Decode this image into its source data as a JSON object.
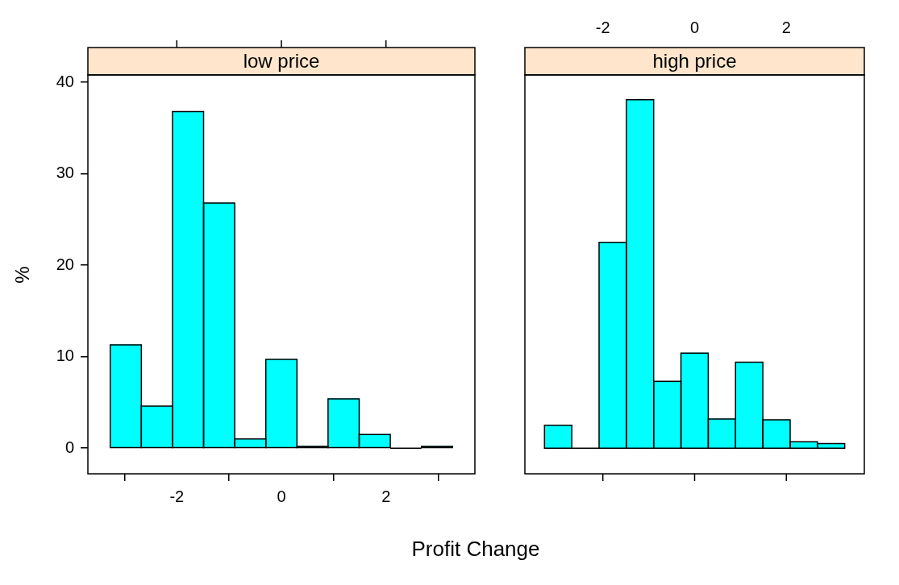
{
  "chart_data": [
    {
      "type": "histogram",
      "title": "low price",
      "xlabel": "Profit Change",
      "ylabel": "%",
      "bins": [
        -3.27,
        -2.68,
        -2.08,
        -1.49,
        -0.89,
        -0.3,
        0.3,
        0.89,
        1.49,
        2.08,
        2.68,
        3.27
      ],
      "values": [
        11.3,
        4.6,
        36.8,
        26.8,
        1.0,
        9.7,
        0.2,
        5.4,
        1.5,
        0,
        0.2
      ],
      "color": "#00ffff",
      "xlim": [
        -3.7,
        3.7
      ],
      "xticks": [
        -2,
        0,
        2
      ],
      "ylim": [
        -2.8,
        40.8
      ],
      "yticks": [
        0,
        10,
        20,
        30,
        40
      ]
    },
    {
      "type": "histogram",
      "title": "high price",
      "bins": [
        -3.27,
        -2.68,
        -2.08,
        -1.49,
        -0.89,
        -0.3,
        0.3,
        0.89,
        1.49,
        2.08,
        2.68,
        3.27
      ],
      "values": [
        2.5,
        0,
        22.5,
        38.1,
        7.3,
        10.4,
        3.2,
        9.4,
        3.1,
        0.7,
        0.5
      ],
      "color": "#00ffff",
      "xlim": [
        -3.7,
        3.7
      ],
      "xticks": [
        -2,
        0,
        2
      ],
      "ylim": [
        -2.8,
        40.8
      ],
      "yticks": [
        0,
        10,
        20,
        30,
        40
      ],
      "tick_labels": "x"
    }
  ]
}
